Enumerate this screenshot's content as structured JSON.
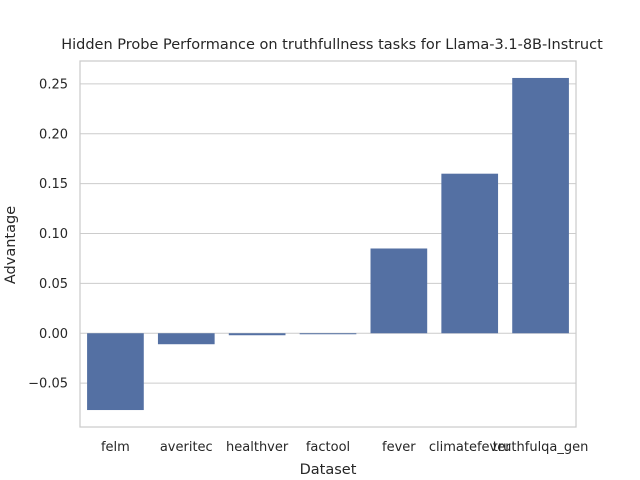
{
  "chart_data": {
    "type": "bar",
    "title": "Hidden Probe Performance on truthfullness tasks for Llama-3.1-8B-Instruct",
    "xlabel": "Dataset",
    "ylabel": "Advantage",
    "categories": [
      "felm",
      "averitec",
      "healthver",
      "factool",
      "fever",
      "climatefever",
      "truthfulqa_gen"
    ],
    "values": [
      -0.077,
      -0.011,
      -0.002,
      -0.001,
      0.085,
      0.16,
      0.256
    ],
    "ylim": [
      -0.094,
      0.273
    ],
    "yticks": [
      -0.05,
      0.0,
      0.05,
      0.1,
      0.15,
      0.2,
      0.25
    ],
    "ytick_labels": [
      "−0.05",
      "0.00",
      "0.05",
      "0.10",
      "0.15",
      "0.20",
      "0.25"
    ],
    "grid": true,
    "bar_color": "#5470a3",
    "grid_color": "#cccccc"
  }
}
